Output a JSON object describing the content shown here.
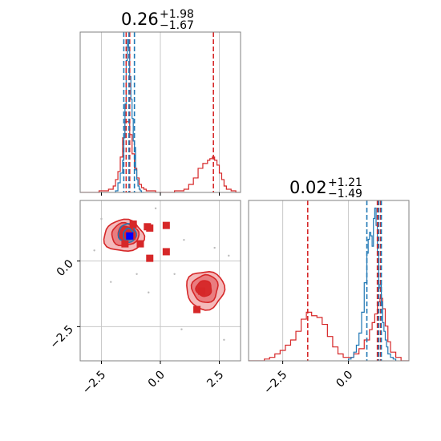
{
  "colors": {
    "red": "#d62728",
    "blue": "#1f77b4",
    "marker_blue": "#0000ff",
    "grid": "#c8c8c8",
    "frame": "#808080"
  },
  "chart_data": [
    {
      "type": "histogram",
      "panel": "top-left",
      "title_main": "0.26",
      "title_sup": "+1.98",
      "title_sub": "−1.67",
      "xlim": [
        -3.4,
        3.4
      ],
      "xticks": [
        -2.5,
        0.0,
        2.5
      ],
      "grid": true,
      "vlines": [
        {
          "color": "red",
          "values": [
            -1.45,
            -1.3,
            2.25
          ]
        },
        {
          "color": "blue",
          "values": [
            -1.55,
            -1.33,
            -1.1
          ]
        }
      ],
      "series": [
        {
          "color": "red",
          "bins": [
            -3.4,
            -3.2,
            -3.0,
            -2.8,
            -2.6,
            -2.4,
            -2.2,
            -2.0,
            -1.9,
            -1.8,
            -1.7,
            -1.6,
            -1.5,
            -1.4,
            -1.3,
            -1.2,
            -1.1,
            -1.0,
            -0.9,
            -0.8,
            -0.7,
            -0.6,
            -0.4,
            -0.2,
            0.0,
            0.2,
            0.4,
            0.6,
            0.8,
            1.0,
            1.2,
            1.4,
            1.6,
            1.8,
            2.0,
            2.1,
            2.2,
            2.3,
            2.4,
            2.5,
            2.6,
            2.7,
            2.8,
            3.0,
            3.2,
            3.4
          ],
          "values": [
            0.0,
            0.0,
            0.0,
            0.0,
            0.01,
            0.01,
            0.02,
            0.04,
            0.08,
            0.13,
            0.22,
            0.34,
            0.44,
            0.44,
            0.36,
            0.24,
            0.15,
            0.09,
            0.05,
            0.03,
            0.02,
            0.01,
            0.01,
            0.0,
            0.0,
            0.0,
            0.0,
            0.01,
            0.01,
            0.02,
            0.05,
            0.09,
            0.15,
            0.18,
            0.2,
            0.21,
            0.22,
            0.2,
            0.17,
            0.12,
            0.08,
            0.04,
            0.02,
            0.01,
            0.0
          ]
        },
        {
          "color": "blue",
          "bins": [
            -1.9,
            -1.8,
            -1.7,
            -1.6,
            -1.55,
            -1.5,
            -1.45,
            -1.4,
            -1.35,
            -1.3,
            -1.25,
            -1.2,
            -1.15,
            -1.1,
            -1.05,
            -1.0,
            -0.95,
            -0.9,
            -0.85,
            -0.8,
            -0.7
          ],
          "values": [
            0.01,
            0.06,
            0.12,
            0.2,
            0.34,
            0.55,
            0.82,
            0.95,
            0.9,
            0.72,
            0.58,
            0.46,
            0.32,
            0.28,
            0.14,
            0.08,
            0.04,
            0.02,
            0.01,
            0.0
          ]
        }
      ]
    },
    {
      "type": "scatter",
      "panel": "bottom-left",
      "xlim": [
        -3.4,
        3.4
      ],
      "ylim": [
        -3.8,
        2.3
      ],
      "xticks": [
        -2.5,
        0.0,
        2.5
      ],
      "yticks": [
        0.0,
        -2.5
      ],
      "xtick_labels": [
        "−2.5",
        "0.0",
        "2.5"
      ],
      "ytick_labels": [
        "0.0",
        "−2.5"
      ],
      "grid": true,
      "contours": [
        {
          "center": [
            -1.55,
            0.95
          ],
          "radius": [
            1.7,
            1.2
          ],
          "fill": "#f3b6b7",
          "stroke": "red"
        },
        {
          "center": [
            -1.5,
            1.0
          ],
          "radius": [
            1.15,
            0.85
          ],
          "fill": "#e8797b",
          "stroke": "red"
        },
        {
          "center": [
            -1.45,
            1.05
          ],
          "radius": [
            0.7,
            0.55
          ],
          "fill": "#d62728",
          "stroke": "red"
        },
        {
          "center": [
            1.9,
            -1.1
          ],
          "radius": [
            1.6,
            1.45
          ],
          "fill": "#f3b6b7",
          "stroke": "red"
        },
        {
          "center": [
            1.9,
            -1.05
          ],
          "radius": [
            1.1,
            1.05
          ],
          "fill": "#e8797b",
          "stroke": "red"
        },
        {
          "center": [
            1.85,
            -1.05
          ],
          "radius": [
            0.65,
            0.6
          ],
          "fill": "#d62728",
          "stroke": "red"
        },
        {
          "center": [
            -1.4,
            1.05
          ],
          "radius": [
            0.75,
            0.7
          ],
          "fill": "none",
          "stroke": "blue"
        },
        {
          "center": [
            -1.35,
            1.0
          ],
          "radius": [
            0.45,
            0.45
          ],
          "fill": "none",
          "stroke": "blue"
        }
      ],
      "red_markers": [
        [
          -1.15,
          1.4
        ],
        [
          -0.45,
          1.25
        ],
        [
          -0.55,
          1.3
        ],
        [
          0.25,
          1.35
        ],
        [
          -1.5,
          0.65
        ],
        [
          -0.85,
          0.65
        ],
        [
          -0.45,
          0.1
        ],
        [
          0.25,
          0.35
        ],
        [
          1.75,
          -1.15
        ],
        [
          1.55,
          -1.85
        ],
        [
          -1.2,
          0.95
        ]
      ],
      "blue_markers": [
        [
          -1.3,
          0.95
        ]
      ],
      "background_points": [
        [
          -2.5,
          1.6
        ],
        [
          -2.1,
          -0.8
        ],
        [
          -0.5,
          -1.2
        ],
        [
          0.6,
          -0.5
        ],
        [
          1.0,
          0.8
        ],
        [
          2.9,
          0.2
        ],
        [
          2.7,
          -3.0
        ],
        [
          -0.2,
          2.0
        ],
        [
          -2.8,
          0.4
        ],
        [
          0.9,
          -2.6
        ],
        [
          -1.0,
          -0.5
        ],
        [
          2.3,
          0.5
        ]
      ]
    },
    {
      "type": "histogram",
      "panel": "bottom-right",
      "title_main": "0.02",
      "title_sup": "+1.21",
      "title_sub": "−1.49",
      "xlim": [
        -3.8,
        2.3
      ],
      "xticks": [
        -2.5,
        0.0
      ],
      "xtick_labels": [
        "−2.5",
        "0.0"
      ],
      "grid": true,
      "vlines": [
        {
          "color": "red",
          "values": [
            -1.55,
            1.1,
            1.22
          ]
        },
        {
          "color": "blue",
          "values": [
            0.7,
            1.15,
            1.25
          ]
        }
      ],
      "series": [
        {
          "color": "red",
          "bins": [
            -3.8,
            -3.5,
            -3.2,
            -3.0,
            -2.8,
            -2.6,
            -2.4,
            -2.2,
            -2.0,
            -1.8,
            -1.6,
            -1.4,
            -1.2,
            -1.0,
            -0.8,
            -0.6,
            -0.4,
            -0.2,
            0.0,
            0.2,
            0.4,
            0.6,
            0.8,
            0.9,
            1.0,
            1.1,
            1.2,
            1.3,
            1.4,
            1.5,
            1.6,
            1.8,
            2.0,
            2.3
          ],
          "values": [
            0.0,
            0.0,
            0.01,
            0.02,
            0.04,
            0.06,
            0.09,
            0.12,
            0.17,
            0.24,
            0.28,
            0.26,
            0.25,
            0.21,
            0.14,
            0.08,
            0.04,
            0.02,
            0.02,
            0.04,
            0.07,
            0.12,
            0.18,
            0.22,
            0.27,
            0.34,
            0.36,
            0.3,
            0.2,
            0.11,
            0.05,
            0.02,
            0.0
          ]
        },
        {
          "color": "blue",
          "bins": [
            0.0,
            0.1,
            0.2,
            0.3,
            0.4,
            0.5,
            0.6,
            0.7,
            0.75,
            0.8,
            0.85,
            0.9,
            0.95,
            1.0,
            1.05,
            1.1,
            1.15,
            1.2,
            1.25,
            1.3,
            1.35,
            1.4,
            1.45,
            1.5,
            1.6,
            1.7,
            1.8
          ],
          "values": [
            0.01,
            0.02,
            0.05,
            0.09,
            0.16,
            0.28,
            0.45,
            0.62,
            0.7,
            0.74,
            0.72,
            0.66,
            0.82,
            0.88,
            0.78,
            0.62,
            0.42,
            0.44,
            0.34,
            0.22,
            0.17,
            0.12,
            0.08,
            0.04,
            0.02,
            0.01
          ]
        }
      ]
    }
  ]
}
